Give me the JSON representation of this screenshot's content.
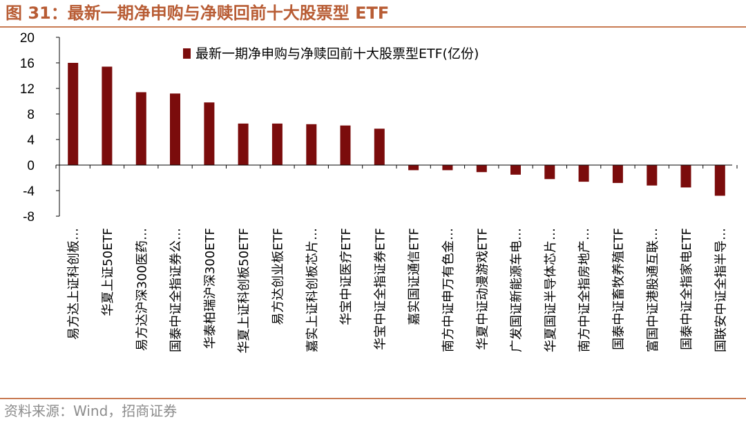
{
  "figure": {
    "title": "图 31：最新一期净申购与净赎回前十大股票型 ETF",
    "source": "资料来源：Wind，招商证券"
  },
  "colors": {
    "bar": "#7b0c0c",
    "accent": "#b85c34",
    "rule": "#c87a52"
  },
  "chart_data": {
    "type": "bar",
    "title": "",
    "xlabel": "",
    "ylabel": "",
    "ylim": [
      -8,
      20
    ],
    "yticks": [
      "20",
      "16",
      "12",
      "8",
      "4",
      "0",
      "-4",
      "-8"
    ],
    "legend": "top-center",
    "grid": false,
    "series": [
      {
        "name": "最新一期净申购与净赎回前十大股票型ETF(亿份)",
        "values": [
          16.0,
          15.4,
          11.4,
          11.2,
          9.8,
          6.5,
          6.5,
          6.4,
          6.2,
          5.7,
          -0.8,
          -0.8,
          -1.1,
          -1.5,
          -2.2,
          -2.6,
          -2.8,
          -3.2,
          -3.5,
          -4.8
        ]
      }
    ],
    "categories": [
      "易方达上证科创板…",
      "华夏上证50ETF",
      "易方达沪深300医药…",
      "国泰中证全指证券公…",
      "华泰柏瑞沪深300ETF",
      "华夏上证科创板50ETF",
      "易方达创业板ETF",
      "嘉实上证科创板芯片…",
      "华宝中证医疗ETF",
      "华宝中证全指证券ETF",
      "嘉实国证通信ETF",
      "南方中证申万有色金…",
      "华夏中证动漫游戏ETF",
      "广发国证新能源车电…",
      "华夏国证半导体芯片…",
      "南方中证全指房地产…",
      "国泰中证畜牧养殖ETF",
      "富国中证港股通互联…",
      "国泰中证全指家电ETF",
      "国联安中证全指半导…"
    ]
  }
}
